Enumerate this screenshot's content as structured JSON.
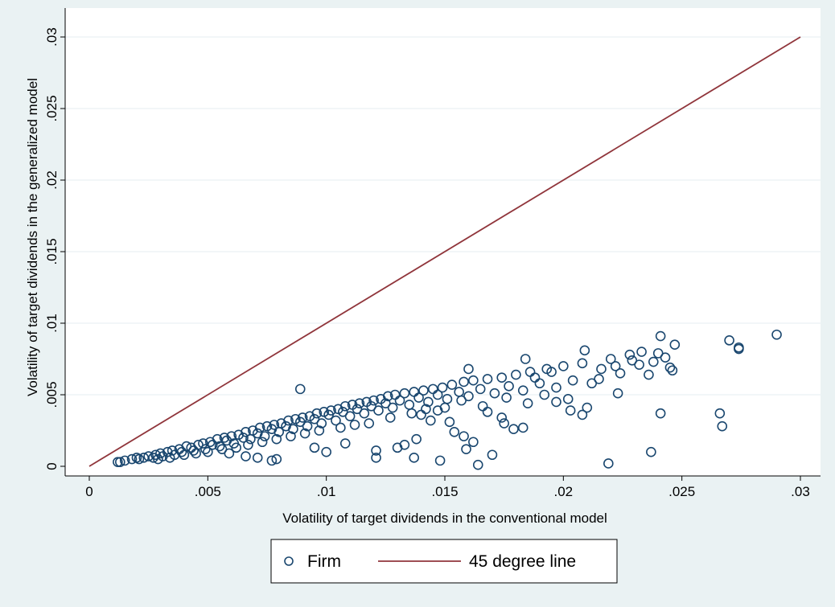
{
  "chart_data": {
    "type": "scatter",
    "xlabel": "Volatility of target dividends in the conventional model",
    "ylabel": "Volatility of target dividends in the generalized model",
    "xlim": [
      0,
      0.03
    ],
    "ylim": [
      0,
      0.03
    ],
    "x_ticks": [
      0,
      0.005,
      0.01,
      0.015,
      0.02,
      0.025,
      0.03
    ],
    "x_tick_labels": [
      "0",
      ".005",
      ".01",
      ".015",
      ".02",
      ".025",
      ".03"
    ],
    "y_ticks": [
      0,
      0.005,
      0.01,
      0.015,
      0.02,
      0.025,
      0.03
    ],
    "y_tick_labels": [
      "0",
      ".005",
      ".01",
      ".015",
      ".02",
      ".025",
      ".03"
    ],
    "grid": "horizontal",
    "legend_position": "bottom",
    "colors": {
      "background": "#eaf2f3",
      "plot_area": "#ffffff",
      "grid": "#e6eef0",
      "firm_marker": "#1a476f",
      "line_45": "#90353b"
    },
    "series": [
      {
        "name": "Firm",
        "kind": "scatter",
        "marker": "hollow-circle",
        "points": [
          [
            0.0012,
            0.0003
          ],
          [
            0.0013,
            0.0003
          ],
          [
            0.0015,
            0.0004
          ],
          [
            0.0018,
            0.0005
          ],
          [
            0.002,
            0.0006
          ],
          [
            0.0021,
            0.0005
          ],
          [
            0.0023,
            0.0006
          ],
          [
            0.0025,
            0.0007
          ],
          [
            0.0027,
            0.0006
          ],
          [
            0.0028,
            0.0008
          ],
          [
            0.003,
            0.0009
          ],
          [
            0.0031,
            0.0007
          ],
          [
            0.0033,
            0.001
          ],
          [
            0.0035,
            0.0011
          ],
          [
            0.0036,
            0.0008
          ],
          [
            0.0038,
            0.0012
          ],
          [
            0.0039,
            0.001
          ],
          [
            0.0041,
            0.0014
          ],
          [
            0.0043,
            0.0013
          ],
          [
            0.0044,
            0.0011
          ],
          [
            0.0046,
            0.0015
          ],
          [
            0.0048,
            0.0016
          ],
          [
            0.0049,
            0.0012
          ],
          [
            0.0051,
            0.0017
          ],
          [
            0.0052,
            0.0015
          ],
          [
            0.0054,
            0.0019
          ],
          [
            0.0055,
            0.0014
          ],
          [
            0.0057,
            0.002
          ],
          [
            0.0058,
            0.0018
          ],
          [
            0.006,
            0.0021
          ],
          [
            0.0061,
            0.0016
          ],
          [
            0.0063,
            0.0022
          ],
          [
            0.0065,
            0.002
          ],
          [
            0.0066,
            0.0024
          ],
          [
            0.0068,
            0.0019
          ],
          [
            0.0069,
            0.0025
          ],
          [
            0.0071,
            0.0023
          ],
          [
            0.0072,
            0.0027
          ],
          [
            0.0074,
            0.0021
          ],
          [
            0.0075,
            0.0028
          ],
          [
            0.0077,
            0.0026
          ],
          [
            0.0078,
            0.0029
          ],
          [
            0.008,
            0.0024
          ],
          [
            0.0081,
            0.003
          ],
          [
            0.0083,
            0.0028
          ],
          [
            0.0084,
            0.0032
          ],
          [
            0.0086,
            0.0026
          ],
          [
            0.0087,
            0.0033
          ],
          [
            0.0089,
            0.0031
          ],
          [
            0.009,
            0.0034
          ],
          [
            0.0092,
            0.0028
          ],
          [
            0.0093,
            0.0035
          ],
          [
            0.0095,
            0.0033
          ],
          [
            0.0096,
            0.0037
          ],
          [
            0.0098,
            0.003
          ],
          [
            0.0099,
            0.0038
          ],
          [
            0.0101,
            0.0036
          ],
          [
            0.0102,
            0.0039
          ],
          [
            0.0104,
            0.0032
          ],
          [
            0.0105,
            0.004
          ],
          [
            0.0107,
            0.0038
          ],
          [
            0.0108,
            0.0042
          ],
          [
            0.011,
            0.0035
          ],
          [
            0.0111,
            0.0043
          ],
          [
            0.0113,
            0.004
          ],
          [
            0.0114,
            0.0044
          ],
          [
            0.0116,
            0.0037
          ],
          [
            0.0117,
            0.0045
          ],
          [
            0.0119,
            0.0042
          ],
          [
            0.012,
            0.0046
          ],
          [
            0.0122,
            0.0039
          ],
          [
            0.0123,
            0.0047
          ],
          [
            0.0125,
            0.0044
          ],
          [
            0.0126,
            0.0049
          ],
          [
            0.0128,
            0.0041
          ],
          [
            0.0129,
            0.005
          ],
          [
            0.0131,
            0.0046
          ],
          [
            0.0133,
            0.0051
          ],
          [
            0.0135,
            0.0043
          ],
          [
            0.0137,
            0.0052
          ],
          [
            0.0139,
            0.0048
          ],
          [
            0.0141,
            0.0053
          ],
          [
            0.0143,
            0.0045
          ],
          [
            0.0145,
            0.0054
          ],
          [
            0.0147,
            0.005
          ],
          [
            0.0149,
            0.0055
          ],
          [
            0.0151,
            0.0047
          ],
          [
            0.0153,
            0.0057
          ],
          [
            0.0156,
            0.0052
          ],
          [
            0.0158,
            0.0059
          ],
          [
            0.016,
            0.0049
          ],
          [
            0.0162,
            0.006
          ],
          [
            0.0165,
            0.0054
          ],
          [
            0.0168,
            0.0061
          ],
          [
            0.0171,
            0.0051
          ],
          [
            0.0174,
            0.0062
          ],
          [
            0.0177,
            0.0056
          ],
          [
            0.018,
            0.0064
          ],
          [
            0.0183,
            0.0053
          ],
          [
            0.0186,
            0.0066
          ],
          [
            0.019,
            0.0058
          ],
          [
            0.0193,
            0.0068
          ],
          [
            0.0197,
            0.0055
          ],
          [
            0.02,
            0.007
          ],
          [
            0.0204,
            0.006
          ],
          [
            0.0208,
            0.0072
          ],
          [
            0.0212,
            0.0058
          ],
          [
            0.0216,
            0.0068
          ],
          [
            0.022,
            0.0075
          ],
          [
            0.0224,
            0.0065
          ],
          [
            0.0228,
            0.0078
          ],
          [
            0.0232,
            0.0071
          ],
          [
            0.0236,
            0.0064
          ],
          [
            0.024,
            0.0079
          ],
          [
            0.0245,
            0.0069
          ],
          [
            0.0247,
            0.0085
          ],
          [
            0.0266,
            0.0037
          ],
          [
            0.0267,
            0.0028
          ],
          [
            0.027,
            0.0088
          ],
          [
            0.0274,
            0.0083
          ],
          [
            0.0274,
            0.0082
          ],
          [
            0.029,
            0.0092
          ],
          [
            0.0241,
            0.0091
          ],
          [
            0.0241,
            0.0037
          ],
          [
            0.0237,
            0.001
          ],
          [
            0.0219,
            0.0002
          ],
          [
            0.0223,
            0.0051
          ],
          [
            0.0209,
            0.0081
          ],
          [
            0.021,
            0.0041
          ],
          [
            0.0208,
            0.0036
          ],
          [
            0.0203,
            0.0039
          ],
          [
            0.0202,
            0.0047
          ],
          [
            0.0197,
            0.0045
          ],
          [
            0.0184,
            0.0075
          ],
          [
            0.0183,
            0.0027
          ],
          [
            0.0179,
            0.0026
          ],
          [
            0.0174,
            0.0034
          ],
          [
            0.0175,
            0.003
          ],
          [
            0.017,
            0.0008
          ],
          [
            0.0164,
            0.0001
          ],
          [
            0.0162,
            0.0017
          ],
          [
            0.0159,
            0.0012
          ],
          [
            0.0158,
            0.0021
          ],
          [
            0.0154,
            0.0024
          ],
          [
            0.0148,
            0.0004
          ],
          [
            0.0144,
            0.0032
          ],
          [
            0.0138,
            0.0019
          ],
          [
            0.0137,
            0.0006
          ],
          [
            0.0133,
            0.0015
          ],
          [
            0.013,
            0.0013
          ],
          [
            0.0121,
            0.0011
          ],
          [
            0.0121,
            0.0006
          ],
          [
            0.0108,
            0.0016
          ],
          [
            0.01,
            0.001
          ],
          [
            0.0089,
            0.0054
          ],
          [
            0.0095,
            0.0013
          ],
          [
            0.0079,
            0.0005
          ],
          [
            0.0077,
            0.0004
          ],
          [
            0.0071,
            0.0006
          ],
          [
            0.0066,
            0.0007
          ],
          [
            0.0059,
            0.0009
          ],
          [
            0.016,
            0.0068
          ],
          [
            0.0147,
            0.0039
          ],
          [
            0.014,
            0.0036
          ],
          [
            0.0152,
            0.0031
          ],
          [
            0.0168,
            0.0038
          ],
          [
            0.0188,
            0.0062
          ],
          [
            0.0195,
            0.0066
          ],
          [
            0.0215,
            0.0061
          ],
          [
            0.0222,
            0.007
          ],
          [
            0.0229,
            0.0074
          ],
          [
            0.0233,
            0.008
          ],
          [
            0.0238,
            0.0073
          ],
          [
            0.0243,
            0.0076
          ],
          [
            0.0246,
            0.0067
          ],
          [
            0.0192,
            0.005
          ],
          [
            0.0185,
            0.0044
          ],
          [
            0.0176,
            0.0048
          ],
          [
            0.0166,
            0.0042
          ],
          [
            0.0157,
            0.0046
          ],
          [
            0.015,
            0.0041
          ],
          [
            0.0142,
            0.004
          ],
          [
            0.0136,
            0.0037
          ],
          [
            0.0127,
            0.0034
          ],
          [
            0.0118,
            0.003
          ],
          [
            0.0112,
            0.0029
          ],
          [
            0.0106,
            0.0027
          ],
          [
            0.0097,
            0.0025
          ],
          [
            0.0091,
            0.0023
          ],
          [
            0.0085,
            0.0021
          ],
          [
            0.0079,
            0.0019
          ],
          [
            0.0073,
            0.0017
          ],
          [
            0.0067,
            0.0015
          ],
          [
            0.0062,
            0.0013
          ],
          [
            0.0056,
            0.0012
          ],
          [
            0.005,
            0.001
          ],
          [
            0.0045,
            0.0009
          ],
          [
            0.004,
            0.0008
          ],
          [
            0.0034,
            0.0006
          ],
          [
            0.0029,
            0.0005
          ]
        ]
      },
      {
        "name": "45 degree line",
        "kind": "line",
        "points": [
          [
            0,
            0
          ],
          [
            0.03,
            0.03
          ]
        ]
      }
    ]
  }
}
